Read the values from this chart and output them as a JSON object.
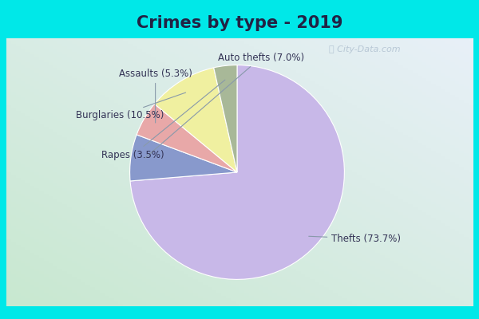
{
  "title": "Crimes by type - 2019",
  "slices": [
    {
      "label": "Thefts",
      "pct": 73.7,
      "color": "#c8b8e8"
    },
    {
      "label": "Auto thefts",
      "pct": 7.0,
      "color": "#8899cc"
    },
    {
      "label": "Assaults",
      "pct": 5.3,
      "color": "#e8a8a8"
    },
    {
      "label": "Burglaries",
      "pct": 10.5,
      "color": "#f0f0a0"
    },
    {
      "label": "Rapes",
      "pct": 3.5,
      "color": "#a8b898"
    }
  ],
  "title_bg_color": "#00e8e8",
  "chart_bg_top": "#e8f0f8",
  "chart_bg_bottom": "#c8e8d8",
  "watermark": "City-Data.com",
  "title_fontsize": 15,
  "label_fontsize": 8.5,
  "border_color": "#00e8e8",
  "border_thickness": 8
}
